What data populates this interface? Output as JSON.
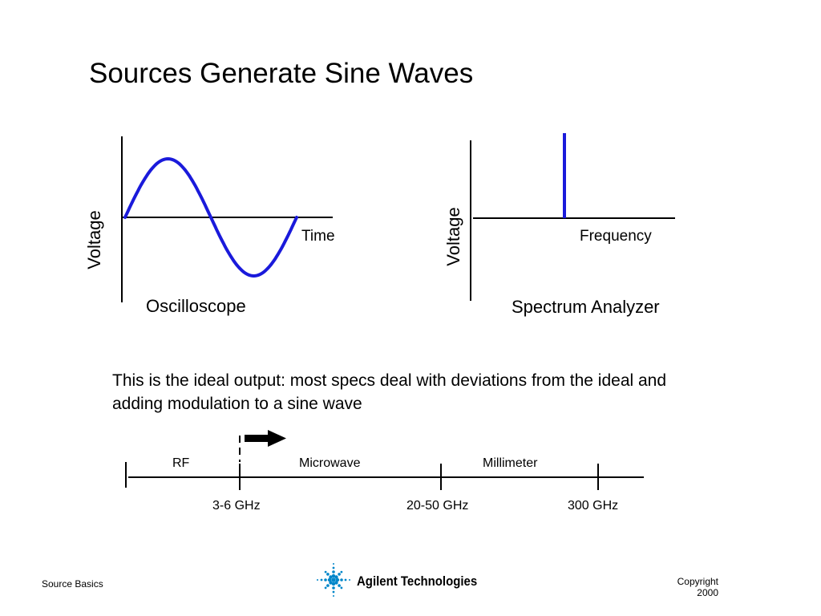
{
  "slide": {
    "title": "Sources Generate Sine Waves",
    "note": "This is the ideal output: most specs deal with deviations from the ideal and adding modulation to a sine wave"
  },
  "oscilloscope": {
    "y_label": "Voltage",
    "x_label": "Time",
    "caption": "Oscilloscope",
    "trace_color": "#1a1adb"
  },
  "spectrum_analyzer": {
    "y_label": "Voltage",
    "x_label": "Frequency",
    "caption": "Spectrum Analyzer",
    "trace_color": "#1a1adb"
  },
  "frequency_bands": {
    "bands": [
      "RF",
      "Microwave",
      "Millimeter"
    ],
    "boundaries": [
      "3-6 GHz",
      "20-50 GHz",
      "300 GHz"
    ]
  },
  "footer": {
    "left": "Source Basics",
    "logo_text": "Agilent Technologies",
    "copyright_line1": "Copyright",
    "copyright_line2": "2000",
    "logo_color": "#0086c9"
  }
}
